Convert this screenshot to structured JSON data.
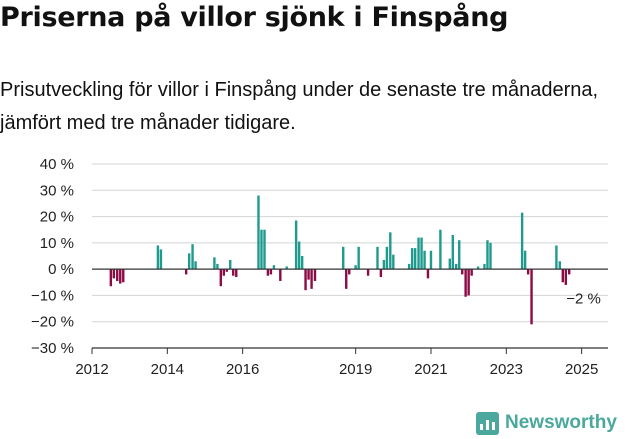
{
  "title": "Priserna på villor sjönk i Finspång",
  "subtitle": "Prisutveckling för villor i Finspång under de senaste tre månaderna, jämfört med tre månader tidigare.",
  "brand": "Newsworthy",
  "colors": {
    "positive": "#1f9a8e",
    "negative": "#8c0a45",
    "grid": "#d4d4d4",
    "axis": "#333333",
    "brand": "#4aa89c"
  },
  "chart_data": {
    "type": "bar",
    "ylim": [
      -30,
      40
    ],
    "yticks": [
      -30,
      -20,
      -10,
      0,
      10,
      20,
      30,
      40
    ],
    "ytick_labels": [
      "−30 %",
      "−20 %",
      "−10 %",
      "0 %",
      "10 %",
      "20 %",
      "30 %",
      "40 %"
    ],
    "xlim": [
      2012.0,
      2025.7
    ],
    "xticks": [
      2012,
      2014,
      2016,
      2019,
      2021,
      2023,
      2025
    ],
    "annotation": {
      "text": "−2 %"
    },
    "values_x": [
      2012.5,
      2012.58,
      2012.67,
      2012.75,
      2012.83,
      2013.75,
      2013.83,
      2014.5,
      2014.58,
      2014.67,
      2014.75,
      2015.25,
      2015.33,
      2015.42,
      2015.5,
      2015.58,
      2015.67,
      2015.75,
      2015.83,
      2016.42,
      2016.5,
      2016.58,
      2016.67,
      2016.75,
      2016.83,
      2017.0,
      2017.17,
      2017.42,
      2017.5,
      2017.58,
      2017.67,
      2017.75,
      2017.83,
      2017.92,
      2018.67,
      2018.75,
      2018.83,
      2019.0,
      2019.08,
      2019.33,
      2019.58,
      2019.67,
      2019.75,
      2019.83,
      2019.92,
      2020.0,
      2020.42,
      2020.5,
      2020.58,
      2020.67,
      2020.75,
      2020.83,
      2020.92,
      2021.0,
      2021.25,
      2021.5,
      2021.58,
      2021.67,
      2021.75,
      2021.83,
      2021.92,
      2022.0,
      2022.08,
      2022.25,
      2022.42,
      2022.5,
      2022.58,
      2023.42,
      2023.5,
      2023.58,
      2023.67,
      2024.33,
      2024.42,
      2024.5,
      2024.58,
      2024.67
    ],
    "values": [
      -6.5,
      -3.5,
      -4.5,
      -5.5,
      -5,
      9,
      7.5,
      -2,
      6,
      9.5,
      3,
      4.5,
      2,
      -6.5,
      -2.5,
      -1,
      3.5,
      -2.5,
      -3,
      28,
      15,
      15,
      -2.5,
      -2,
      1.5,
      -4.5,
      1,
      18.5,
      10.5,
      5,
      -8,
      -4,
      -7.5,
      -4.5,
      8.5,
      -7.5,
      -2,
      1.5,
      8.5,
      -2.5,
      8.5,
      -3,
      3.5,
      8.5,
      14,
      5.5,
      2,
      8,
      8,
      12,
      12,
      7,
      -3.5,
      7,
      15,
      4,
      13,
      2,
      11,
      -2,
      -10.5,
      -10,
      -2.5,
      1,
      2,
      11,
      10,
      21.5,
      7,
      -2,
      -21,
      9,
      3,
      -5,
      -6,
      -2
    ]
  }
}
